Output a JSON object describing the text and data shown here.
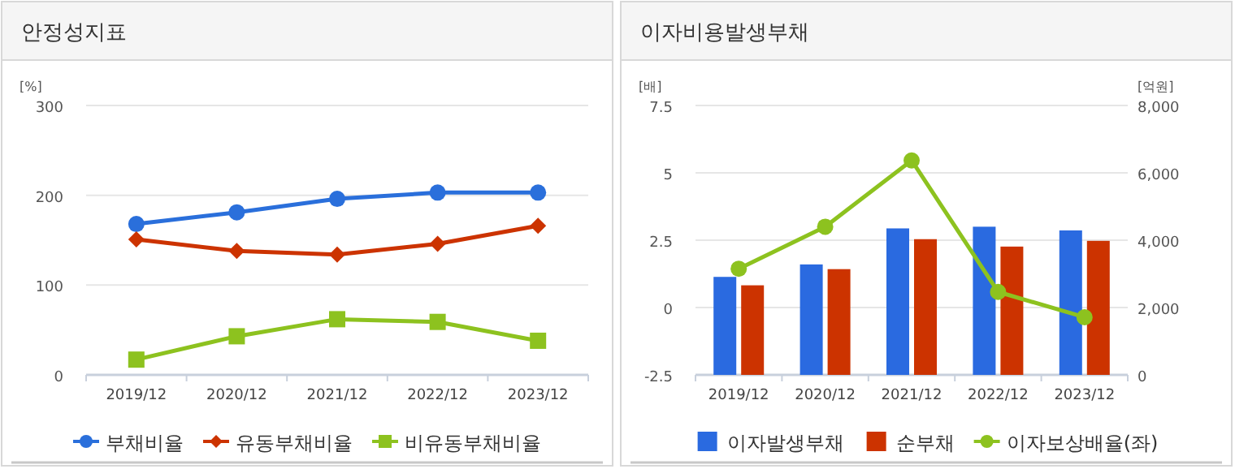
{
  "chart_data": [
    {
      "type": "line",
      "title": "안정성지표",
      "ylabel": "[%]",
      "categories": [
        "2019/12",
        "2020/12",
        "2021/12",
        "2022/12",
        "2023/12"
      ],
      "series": [
        {
          "name": "부채비율",
          "color": "#2a6fdb",
          "marker": "circle",
          "values": [
            168,
            181,
            196,
            203,
            203
          ]
        },
        {
          "name": "유동부채비율",
          "color": "#cc3300",
          "marker": "diamond",
          "values": [
            151,
            138,
            134,
            146,
            166
          ]
        },
        {
          "name": "비유동부채비율",
          "color": "#8dc21f",
          "marker": "square",
          "values": [
            17,
            43,
            62,
            59,
            38
          ]
        }
      ],
      "ylim": [
        0,
        300
      ],
      "yticks": [
        0,
        100,
        200,
        300
      ],
      "grid": "y",
      "legend": "bottom"
    },
    {
      "type": "bar",
      "title": "이자비용발생부채",
      "ylabel": "[배]",
      "y2label": "[억원]",
      "categories": [
        "2019/12",
        "2020/12",
        "2021/12",
        "2022/12",
        "2023/12"
      ],
      "series": [
        {
          "name": "이자발생부채",
          "color": "#2a6ae0",
          "axis": "y2",
          "values": [
            2910,
            3280,
            4350,
            4400,
            4290
          ]
        },
        {
          "name": "순부채",
          "color": "#cc3300",
          "axis": "y2",
          "values": [
            2660,
            3140,
            4030,
            3810,
            3980
          ]
        },
        {
          "name": "이자보상배율(좌)",
          "type": "line",
          "color": "#8dc21f",
          "marker": "circle",
          "values": [
            1.44,
            3.0,
            5.46,
            0.58,
            -0.36
          ]
        }
      ],
      "ylim": [
        -2.5,
        7.5
      ],
      "yticks": [
        -2.5,
        0,
        2.5,
        5,
        7.5
      ],
      "y2lim": [
        0,
        8000
      ],
      "y2ticks": [
        0,
        {
          "value": 2000,
          "label": "2,000"
        },
        {
          "value": 4000,
          "label": "4,000"
        },
        {
          "value": 6000,
          "label": "6,000"
        },
        {
          "value": 8000,
          "label": "8,000"
        }
      ],
      "grid": "y",
      "legend": "bottom"
    }
  ]
}
